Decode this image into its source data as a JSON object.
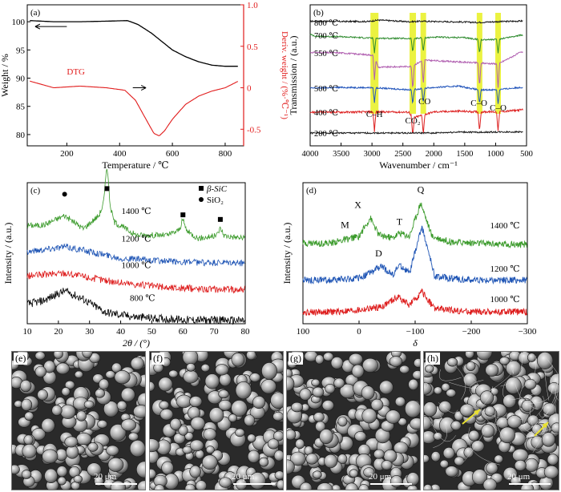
{
  "panels": {
    "a": {
      "label": "(a)",
      "xlabel": "Temperature / ℃",
      "ylabel_left": "Weight / %",
      "ylabel_right": "Deriv. weight / (%·℃⁻¹)",
      "dtg_label": "DTG",
      "x_ticks": [
        "200",
        "400",
        "600",
        "800"
      ],
      "y_left_ticks": [
        "80",
        "85",
        "90",
        "95",
        "100"
      ],
      "y_right_ticks": [
        "-0.5",
        "0",
        "0.5",
        "1.0"
      ],
      "colors": {
        "weight": "#000000",
        "dtg": "#e11b1b"
      }
    },
    "b": {
      "label": "(b)",
      "xlabel": "Wavenumber / cm⁻¹",
      "ylabel": "Transmission / (a.u.)",
      "x_ticks": [
        "4000",
        "3500",
        "3000",
        "2500",
        "2000",
        "1500",
        "1000",
        "500"
      ],
      "series_labels": [
        "800 ℃",
        "700 ℃",
        "550 ℃",
        "500 ℃",
        "400 ℃",
        "200 ℃"
      ],
      "band_labels": [
        "C–H",
        "CO₂",
        "CO",
        "C–O",
        "C–O"
      ],
      "colors": {
        "800": "#1a1a1a",
        "700": "#2e8b2e",
        "550": "#b05fb0",
        "500": "#2255bb",
        "400": "#dd2222",
        "200": "#1a1a1a",
        "highlight": "#e8f020"
      }
    },
    "c": {
      "label": "(c)",
      "xlabel": "2θ / (°)",
      "ylabel": "Intensity / (a.u.)",
      "x_ticks": [
        "10",
        "20",
        "30",
        "40",
        "50",
        "60",
        "70",
        "80"
      ],
      "series_labels": [
        "1400 ℃",
        "1200 ℃",
        "1000 ℃",
        "800 ℃"
      ],
      "legend": [
        "β-SiC",
        "SiO₂"
      ],
      "colors": {
        "1400": "#3a9a2a",
        "1200": "#1f55b5",
        "1000": "#dd1a1a",
        "800": "#000000"
      }
    },
    "d": {
      "label": "(d)",
      "xlabel": "δ",
      "ylabel": "Intensity / (a.u.)",
      "x_ticks": [
        "100",
        "0",
        "−100",
        "−200",
        "−300"
      ],
      "series_labels": [
        "1400 ℃",
        "1200 ℃",
        "1000 ℃"
      ],
      "peak_labels": [
        "M",
        "X",
        "T",
        "Q",
        "D"
      ],
      "colors": {
        "1400": "#3a9a2a",
        "1200": "#1f55b5",
        "1000": "#dd1a1a"
      }
    },
    "sem": [
      {
        "label": "(e)",
        "scale": "20 μm"
      },
      {
        "label": "(f)",
        "scale": "20 μm"
      },
      {
        "label": "(g)",
        "scale": "20 μm"
      },
      {
        "label": "(h)",
        "scale": "20 μm"
      }
    ]
  },
  "chart_data": [
    {
      "type": "line",
      "panel": "a",
      "xlim": [
        50,
        870
      ],
      "series": [
        {
          "axis": "left",
          "ylim": [
            78,
            103
          ],
          "x": [
            60,
            150,
            250,
            350,
            430,
            470,
            520,
            560,
            600,
            650,
            700,
            750,
            800,
            850
          ],
          "values": [
            100.2,
            100.0,
            100.0,
            100.1,
            100.2,
            99.5,
            98.0,
            96.5,
            95.0,
            93.8,
            92.9,
            92.3,
            92.1,
            92.1
          ]
        },
        {
          "name": "DTG",
          "axis": "right",
          "ylim": [
            -0.7,
            1.0
          ],
          "x": [
            60,
            150,
            250,
            350,
            420,
            460,
            500,
            530,
            550,
            570,
            600,
            650,
            700,
            750,
            800,
            850
          ],
          "values": [
            0.08,
            0.0,
            0.02,
            0.0,
            -0.03,
            -0.15,
            -0.38,
            -0.55,
            -0.58,
            -0.52,
            -0.38,
            -0.2,
            -0.1,
            -0.04,
            0.0,
            0.08
          ]
        }
      ]
    },
    {
      "type": "line",
      "panel": "b",
      "xlim": [
        4000,
        500
      ],
      "series": [
        {
          "name": "800 ℃",
          "x": [
            4000,
            3500,
            3050,
            2900,
            2400,
            2200,
            1550,
            1300,
            1000,
            700,
            600
          ],
          "values": [
            0.5,
            0.4,
            0.4,
            1.0,
            0.3,
            0.5,
            0.2,
            0.0,
            0.3,
            0.5,
            0.6
          ]
        },
        {
          "name": "700 ℃",
          "x": [
            4000,
            3900,
            3500,
            3000,
            2360,
            2000,
            1500,
            1260,
            1000,
            600
          ],
          "values": [
            0.3,
            -0.4,
            -0.6,
            -1.2,
            -1.4,
            -0.8,
            -1.0,
            -1.8,
            -1.8,
            0.0
          ]
        },
        {
          "name": "550 ℃",
          "x": [
            4000,
            3500,
            2960,
            2900,
            2360,
            2170,
            1260,
            960,
            600
          ],
          "values": [
            0.2,
            0.0,
            -1.0,
            -6.0,
            -5.6,
            -3.0,
            -4.2,
            -4.6,
            0.2
          ]
        },
        {
          "name": "500 ℃",
          "x": [
            4000,
            3500,
            3000,
            2360,
            2100,
            1600,
            1260,
            960,
            600
          ],
          "values": [
            0.0,
            0.3,
            0.2,
            -0.7,
            0.1,
            0.9,
            -0.8,
            -0.6,
            0.3
          ]
        },
        {
          "name": "400 ℃",
          "x": [
            4000,
            3500,
            3000,
            2400,
            2340,
            2000,
            1600,
            1260,
            960,
            600
          ],
          "values": [
            0.0,
            0.0,
            0.1,
            0.0,
            -1.8,
            0.1,
            0.3,
            0.1,
            0.1,
            0.7
          ]
        },
        {
          "name": "200 ℃",
          "x": [
            4000,
            3500,
            3000,
            2400,
            2000,
            1600,
            1260,
            960,
            600
          ],
          "values": [
            0.0,
            0.0,
            0.0,
            0.0,
            0.0,
            0.4,
            0.3,
            0.4,
            0.5
          ]
        }
      ],
      "bands": [
        2960,
        2340,
        2170,
        1260,
        960
      ]
    },
    {
      "type": "line",
      "panel": "c",
      "xlim": [
        10,
        80
      ],
      "series": [
        {
          "name": "1400 ℃",
          "x": [
            10,
            15,
            22,
            28,
            33,
            35.6,
            38,
            45,
            55,
            60,
            65,
            72,
            80
          ],
          "values": [
            3.0,
            3.0,
            3.3,
            2.9,
            3.3,
            3.9,
            3.1,
            2.7,
            2.7,
            2.9,
            2.6,
            2.7,
            2.6
          ]
        },
        {
          "name": "1200 ℃",
          "x": [
            10,
            22,
            30,
            40,
            55,
            70,
            80
          ],
          "values": [
            2.2,
            2.35,
            2.2,
            2.0,
            1.9,
            1.85,
            1.85
          ]
        },
        {
          "name": "1000 ℃",
          "x": [
            10,
            22,
            30,
            40,
            55,
            70,
            80
          ],
          "values": [
            1.45,
            1.55,
            1.4,
            1.25,
            1.1,
            1.05,
            1.05
          ]
        },
        {
          "name": "800 ℃",
          "x": [
            10,
            15,
            22,
            28,
            35,
            45,
            60,
            80
          ],
          "values": [
            0.6,
            0.7,
            1.0,
            0.75,
            0.35,
            0.2,
            0.12,
            0.1
          ]
        }
      ],
      "markers": {
        "β-SiC": [
          35.6,
          60,
          72
        ],
        "SiO₂": [
          22
        ]
      }
    },
    {
      "type": "line",
      "panel": "d",
      "xlim": [
        100,
        -300
      ],
      "series": [
        {
          "name": "1400 ℃",
          "x": [
            100,
            50,
            12,
            0,
            -20,
            -35,
            -60,
            -72,
            -90,
            -110,
            -130,
            -160,
            -200,
            -300
          ],
          "values": [
            2.4,
            2.4,
            2.55,
            2.6,
            3.15,
            2.65,
            2.55,
            2.7,
            2.6,
            3.6,
            2.6,
            2.45,
            2.4,
            2.35
          ]
        },
        {
          "name": "1200 ℃",
          "x": [
            100,
            50,
            0,
            -40,
            -60,
            -72,
            -90,
            -112,
            -135,
            -200,
            -300
          ],
          "values": [
            1.3,
            1.3,
            1.35,
            1.7,
            1.45,
            1.75,
            1.5,
            2.9,
            1.4,
            1.3,
            1.3
          ]
        },
        {
          "name": "1000 ℃",
          "x": [
            100,
            50,
            0,
            -40,
            -70,
            -90,
            -112,
            -135,
            -200,
            -300
          ],
          "values": [
            0.35,
            0.35,
            0.4,
            0.5,
            0.8,
            0.55,
            0.95,
            0.45,
            0.35,
            0.35
          ]
        }
      ]
    }
  ]
}
